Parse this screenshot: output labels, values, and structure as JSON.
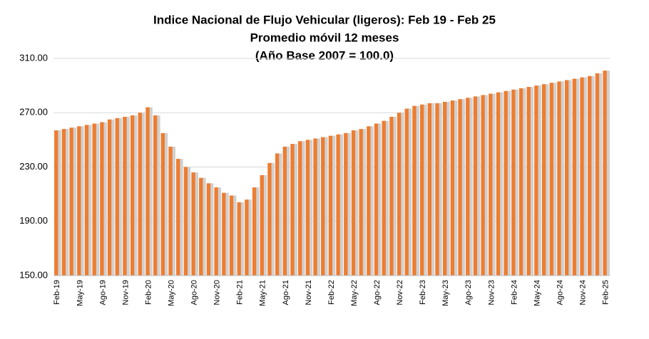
{
  "chart_data": {
    "type": "bar",
    "title": [
      "Indice Nacional de Flujo Vehicular (ligeros): Feb 19 - Feb 25",
      "Promedio móvil 12 meses",
      "(Año Base 2007 = 100.0)"
    ],
    "categories": [
      "Feb-19",
      null,
      null,
      "May-19",
      null,
      null,
      "Ago-19",
      null,
      null,
      "Nov-19",
      null,
      null,
      "Feb-20",
      null,
      null,
      "May-20",
      null,
      null,
      "Ago-20",
      null,
      null,
      "Nov-20",
      null,
      null,
      "Feb-21",
      null,
      null,
      "May-21",
      null,
      null,
      "Ago-21",
      null,
      null,
      "Nov-21",
      null,
      null,
      "Feb-22",
      null,
      null,
      "May-22",
      null,
      null,
      "Ago-22",
      null,
      null,
      "Nov-22",
      null,
      null,
      "Feb-23",
      null,
      null,
      "May-23",
      null,
      null,
      "Ago-23",
      null,
      null,
      "Nov-23",
      null,
      null,
      "Feb-24",
      null,
      null,
      "May-24",
      null,
      null,
      "Ago-24",
      null,
      null,
      "Nov-24",
      null,
      null,
      "Feb-25"
    ],
    "values": [
      257,
      258,
      259,
      260,
      261,
      262,
      263,
      265,
      266,
      267,
      268,
      270,
      274,
      268,
      255,
      245,
      236,
      230,
      226,
      222,
      218,
      215,
      211,
      209,
      204,
      206,
      215,
      224,
      233,
      240,
      245,
      247,
      249,
      250,
      251,
      252,
      253,
      254,
      255,
      257,
      258,
      260,
      262,
      264,
      267,
      270,
      273,
      275,
      276,
      277,
      277,
      278,
      279,
      280,
      281,
      282,
      283,
      284,
      285,
      286,
      287,
      288,
      289,
      290,
      291,
      292,
      293,
      294,
      295,
      296,
      297,
      299,
      301
    ],
    "color": "#ed7d31",
    "ylim": [
      150,
      310
    ],
    "yticks": [
      {
        "value": 150,
        "label": "150.00"
      },
      {
        "value": 190,
        "label": "190.00"
      },
      {
        "value": 230,
        "label": "230.00"
      },
      {
        "value": 270,
        "label": "270.00"
      },
      {
        "value": 310,
        "label": "310.00"
      }
    ],
    "grid": true
  }
}
